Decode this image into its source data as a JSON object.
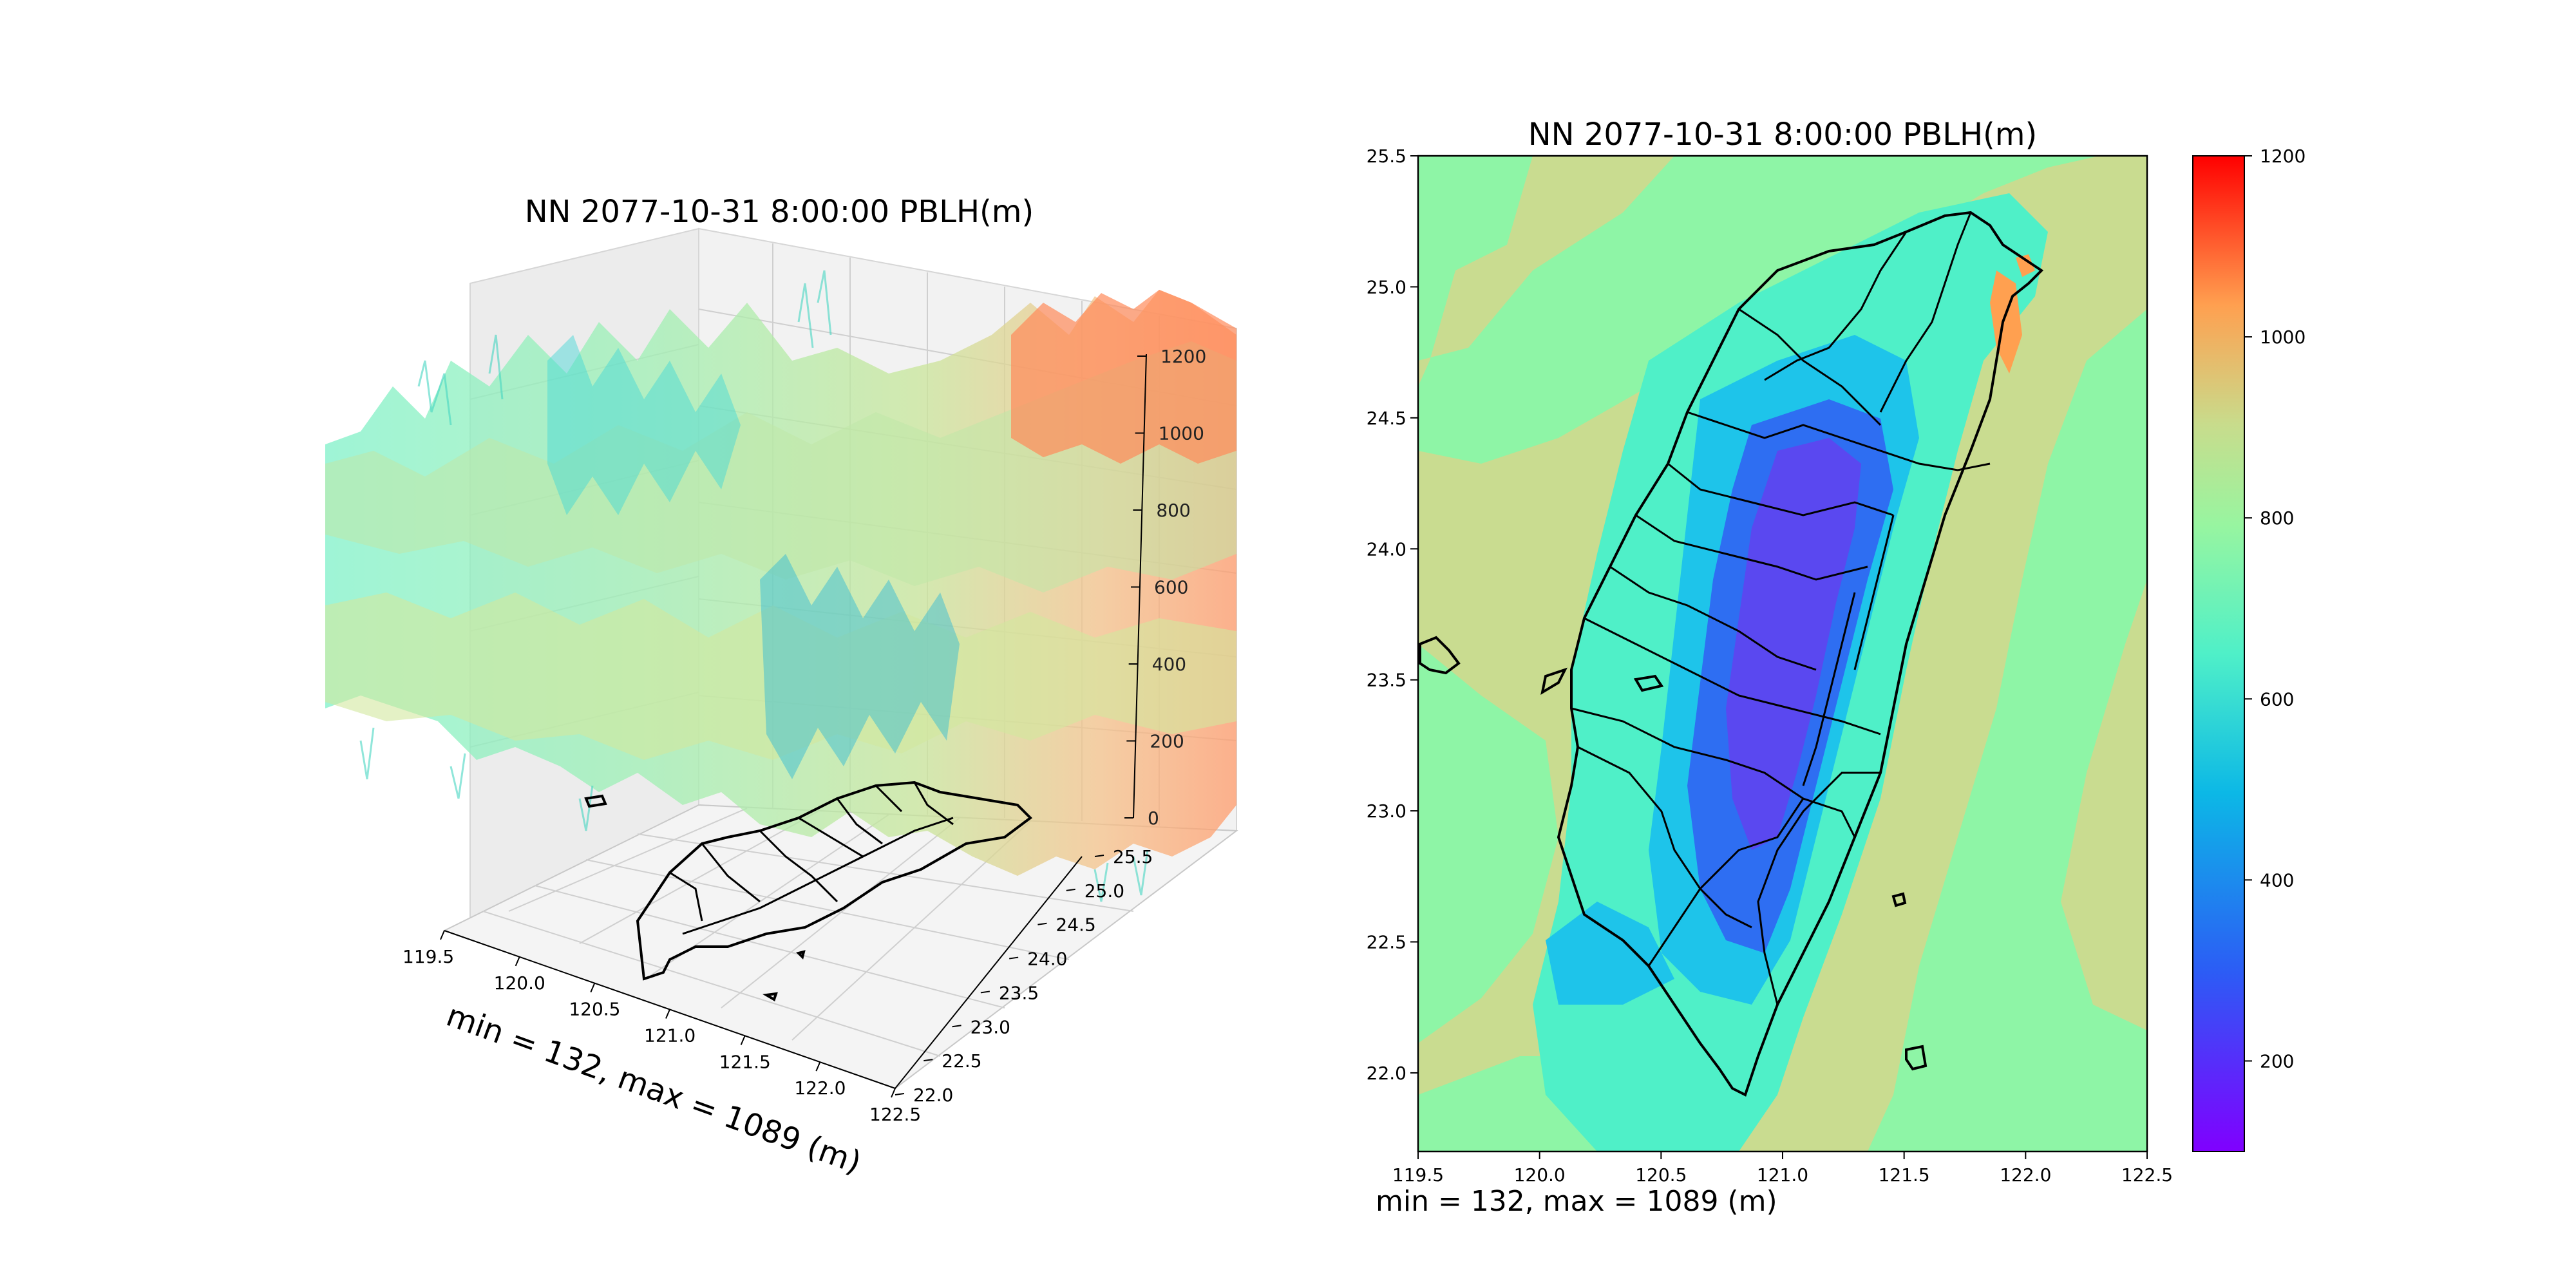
{
  "figure": {
    "panels": [
      {
        "id": "surface3d",
        "title": "NN 2077-10-31 8:00:00 PBLH(m)",
        "caption": "min = 132, max = 1089 (m)"
      },
      {
        "id": "contour2d",
        "title": "NN 2077-10-31 8:00:00 PBLH(m)",
        "caption": "min = 132, max = 1089 (m)"
      }
    ]
  },
  "chart_data": [
    {
      "type": "surface3d",
      "title": "NN 2077-10-31 8:00:00 PBLH(m)",
      "caption": "min = 132, max = 1089 (m)",
      "x_ticks": [
        "119.5",
        "120.0",
        "120.5",
        "121.0",
        "121.5",
        "122.0",
        "122.5"
      ],
      "y_ticks": [
        "22.0",
        "22.5",
        "23.0",
        "23.5",
        "24.0",
        "24.5",
        "25.0",
        "25.5"
      ],
      "z_ticks": [
        "0",
        "200",
        "400",
        "600",
        "800",
        "1000",
        "1200"
      ],
      "xlim": [
        119.5,
        122.5
      ],
      "ylim": [
        22.0,
        25.5
      ],
      "zlim": [
        0,
        1200
      ],
      "colormap": "rainbow",
      "grid": true
    },
    {
      "type": "heatmap",
      "title": "NN 2077-10-31 8:00:00 PBLH(m)",
      "caption": "min = 132, max = 1089 (m)",
      "x_ticks": [
        "119.5",
        "120.0",
        "120.5",
        "121.0",
        "121.5",
        "122.0",
        "122.5"
      ],
      "y_ticks": [
        "22.0",
        "22.5",
        "23.0",
        "23.5",
        "24.0",
        "24.5",
        "25.0",
        "25.5"
      ],
      "xlim": [
        119.5,
        122.5
      ],
      "ylim": [
        21.7,
        25.5
      ],
      "colorbar_ticks": [
        "200",
        "400",
        "600",
        "800",
        "1000",
        "1200"
      ],
      "colorbar_range": [
        100,
        1200
      ],
      "colormap": "rainbow",
      "value_range": [
        132,
        1089
      ]
    }
  ]
}
